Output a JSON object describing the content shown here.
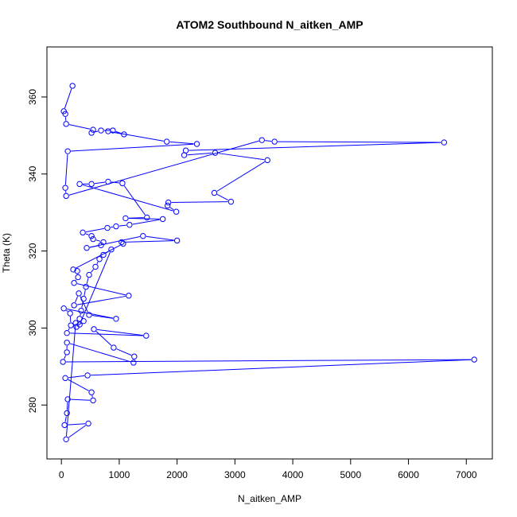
{
  "chart_data": {
    "type": "line",
    "mode": "points-and-lines",
    "title": "ATOM2 Southbound N_aitken_AMP",
    "xlabel": "N_aitken_AMP",
    "ylabel": "Theta (K)",
    "xlim": [
      -250,
      7450
    ],
    "ylim": [
      266,
      373
    ],
    "xticks": [
      0,
      1000,
      2000,
      3000,
      4000,
      5000,
      6000,
      7000
    ],
    "yticks": [
      280,
      300,
      320,
      340,
      360
    ],
    "grid": false,
    "color": "#0000ff",
    "x": [
      192,
      41,
      68,
      82,
      548,
      521,
      685,
      890,
      1082,
      808,
      1822,
      2342,
      110,
      68,
      82,
      3466,
      3685,
      6616,
      2151,
      2123,
      2658,
      3562,
      2644,
      2932,
      1849,
      1836,
      1986,
      315,
      521,
      808,
      1055,
      1479,
      1110,
      1753,
      1178,
      945,
      795,
      370,
      521,
      548,
      726,
      685,
      438,
      1411,
      2000,
      1041,
      1068,
      205,
      274,
      288,
      219,
      1164,
      219,
      301,
      479,
      945,
      41,
      151,
      164,
      96,
      1466,
      562,
      904,
      1260,
      1247,
      96,
      96,
      27,
      7137,
      452,
      68,
      521,
      548,
      110,
      96,
      55,
      466,
      82,
      247,
      315,
      342,
      384,
      425,
      479,
      589,
      658,
      726,
      863,
      315,
      384,
      260
    ],
    "y": [
      362.9,
      356.3,
      355.6,
      353,
      351.5,
      350.7,
      351.3,
      351.3,
      350.3,
      351.1,
      348.4,
      347.8,
      345.9,
      336.4,
      334.3,
      348.8,
      348.4,
      348.2,
      346.1,
      344.9,
      345.5,
      343.6,
      335.1,
      332.8,
      332.6,
      331.8,
      330.2,
      337.4,
      337.4,
      338,
      337.6,
      328.7,
      328.5,
      328.3,
      326.8,
      326.4,
      326,
      324.8,
      323.9,
      323.1,
      322.3,
      321.5,
      320.8,
      323.9,
      322.7,
      322.3,
      321.9,
      315.2,
      314.8,
      313.2,
      311.7,
      308.4,
      305.9,
      309,
      303.4,
      302.4,
      305.1,
      303.8,
      300.7,
      298.7,
      298,
      299.7,
      294.9,
      292.6,
      291,
      296.2,
      293.7,
      291.2,
      291.8,
      287.7,
      287,
      283.3,
      281.2,
      281.5,
      277.9,
      274.8,
      275.2,
      271.1,
      301.3,
      302.4,
      304.5,
      307.6,
      310.7,
      313.8,
      315.9,
      317.9,
      319,
      320.4,
      300.9,
      301.8,
      300.3
    ]
  }
}
